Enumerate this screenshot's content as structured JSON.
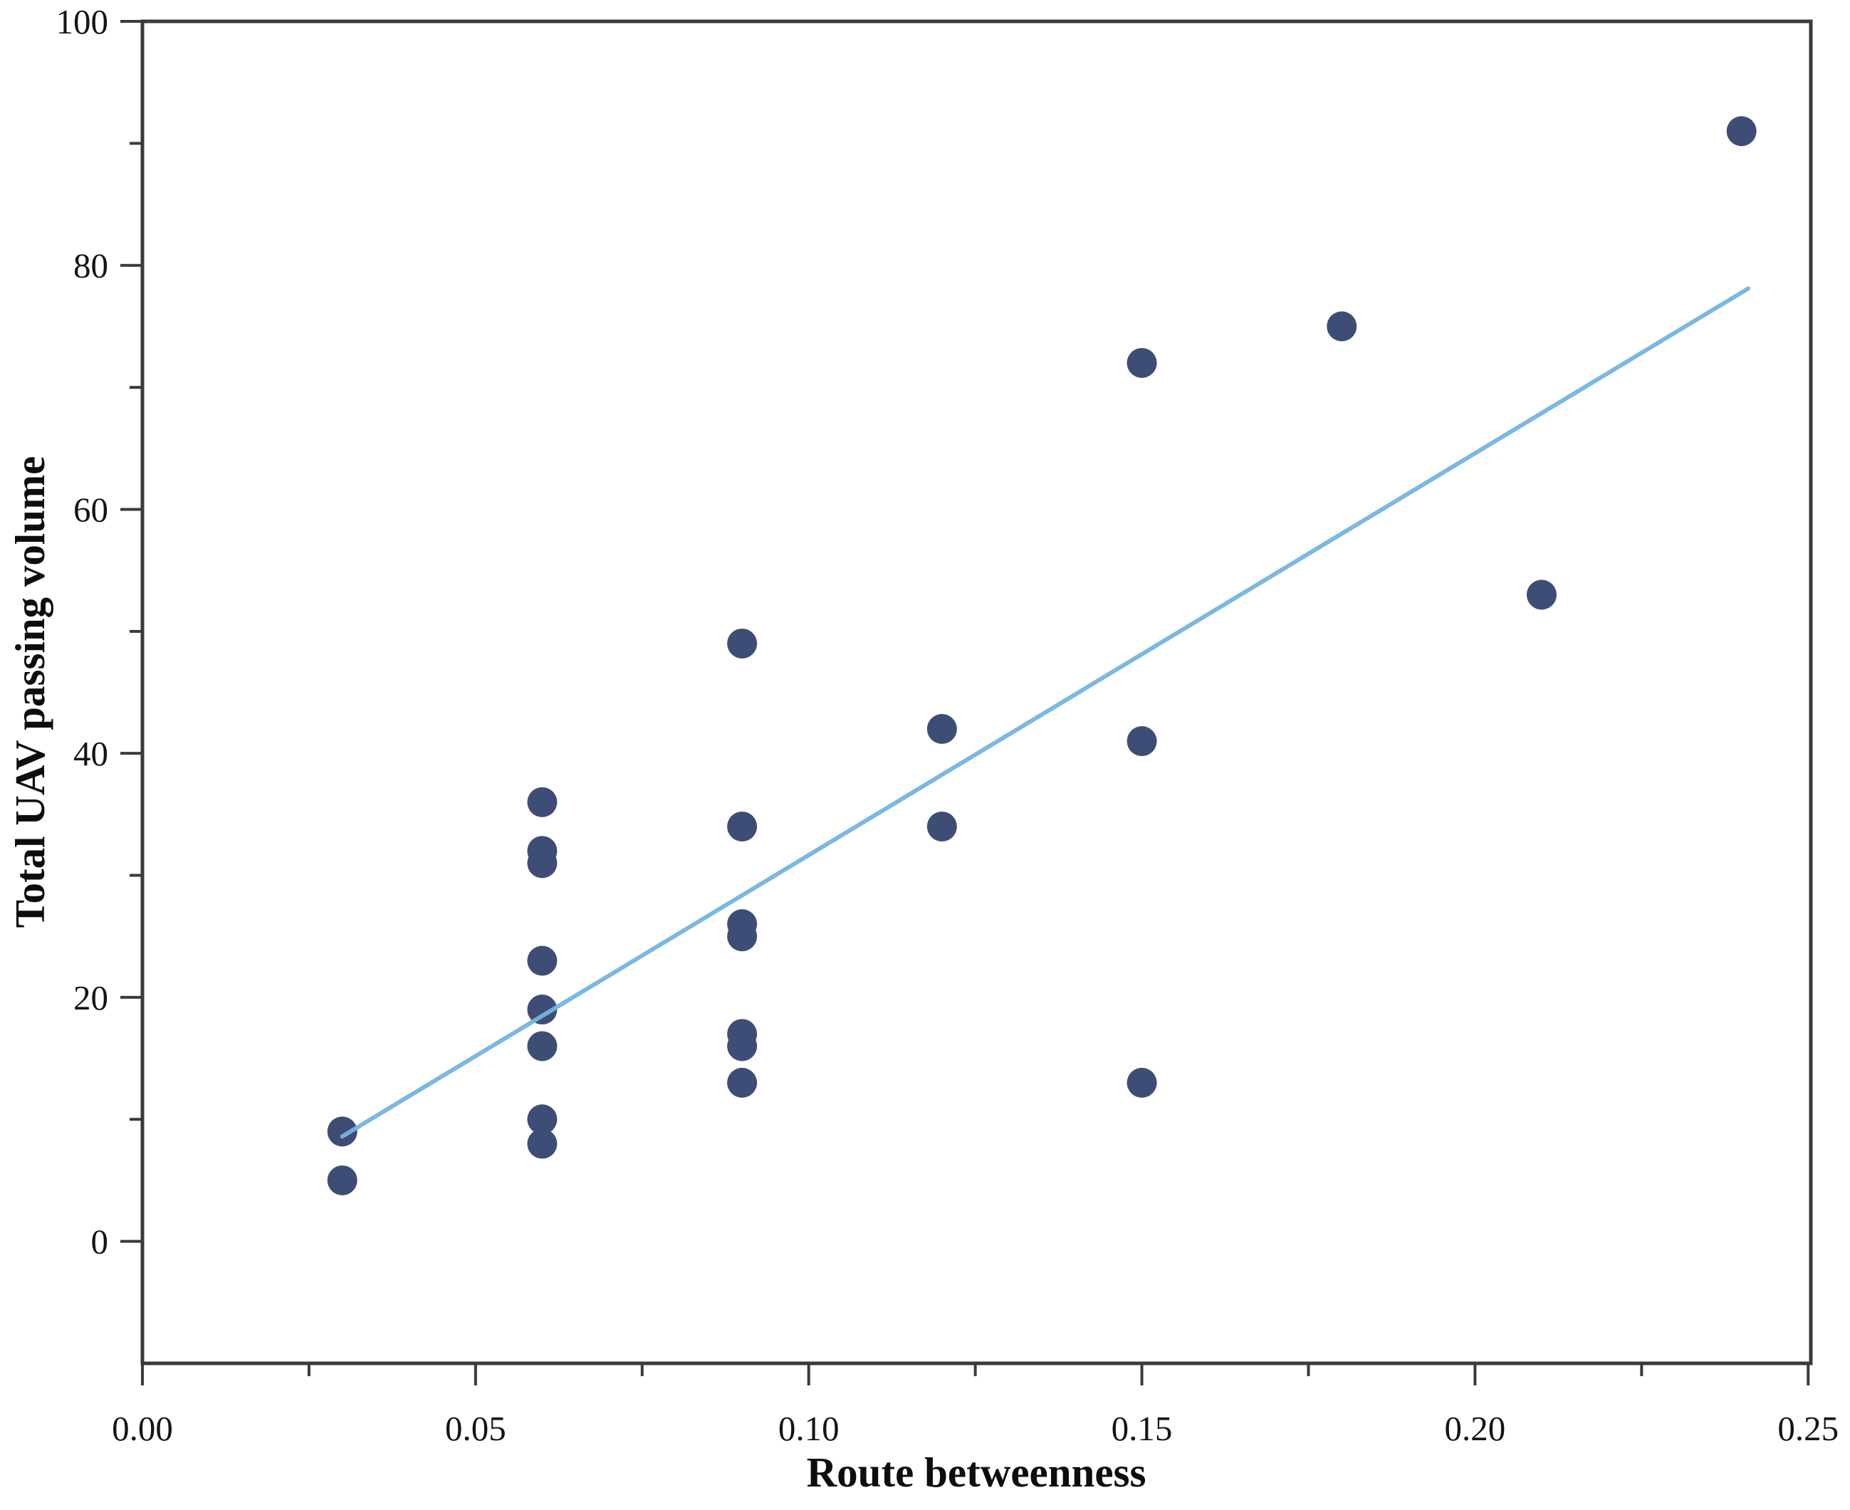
{
  "chart_data": {
    "type": "scatter",
    "title": "",
    "xlabel": "Route betweenness",
    "ylabel": "Total UAV passing volume",
    "xlim": [
      0,
      0.2504
    ],
    "ylim": [
      -10,
      100
    ],
    "x_tick_values": [
      0,
      0.05,
      0.1,
      0.15,
      0.2,
      0.25
    ],
    "x_tick_labels": [
      "0.00",
      "0.05",
      "0.10",
      "0.15",
      "0.20",
      "0.25"
    ],
    "x_minor_ticks": [
      0.025,
      0.075,
      0.125,
      0.175,
      0.225
    ],
    "y_tick_values": [
      0,
      20,
      40,
      60,
      80,
      100
    ],
    "y_tick_labels": [
      "0",
      "20",
      "40",
      "60",
      "80",
      "100"
    ],
    "y_minor_ticks": [
      10,
      30,
      50,
      70,
      90
    ],
    "grid": false,
    "legend": "none",
    "points": [
      {
        "x": 0.03,
        "y": 9
      },
      {
        "x": 0.03,
        "y": 5
      },
      {
        "x": 0.06,
        "y": 36
      },
      {
        "x": 0.06,
        "y": 32
      },
      {
        "x": 0.06,
        "y": 31
      },
      {
        "x": 0.06,
        "y": 23
      },
      {
        "x": 0.06,
        "y": 19
      },
      {
        "x": 0.06,
        "y": 16
      },
      {
        "x": 0.06,
        "y": 10
      },
      {
        "x": 0.06,
        "y": 8
      },
      {
        "x": 0.09,
        "y": 49
      },
      {
        "x": 0.09,
        "y": 34
      },
      {
        "x": 0.09,
        "y": 26
      },
      {
        "x": 0.09,
        "y": 25
      },
      {
        "x": 0.09,
        "y": 17
      },
      {
        "x": 0.09,
        "y": 16
      },
      {
        "x": 0.09,
        "y": 13
      },
      {
        "x": 0.12,
        "y": 42
      },
      {
        "x": 0.12,
        "y": 34
      },
      {
        "x": 0.15,
        "y": 72
      },
      {
        "x": 0.15,
        "y": 41
      },
      {
        "x": 0.15,
        "y": 13
      },
      {
        "x": 0.18,
        "y": 75
      },
      {
        "x": 0.21,
        "y": 53
      },
      {
        "x": 0.24,
        "y": 91
      }
    ],
    "trend_line": {
      "x1": 0.03,
      "y1": 8.6,
      "x2": 0.241,
      "y2": 78.1
    },
    "colors": {
      "point": "#3d4d76",
      "trend": "#74b4e2",
      "axis": "#3a3a3a",
      "text": "#141414",
      "background": "#ffffff"
    }
  }
}
